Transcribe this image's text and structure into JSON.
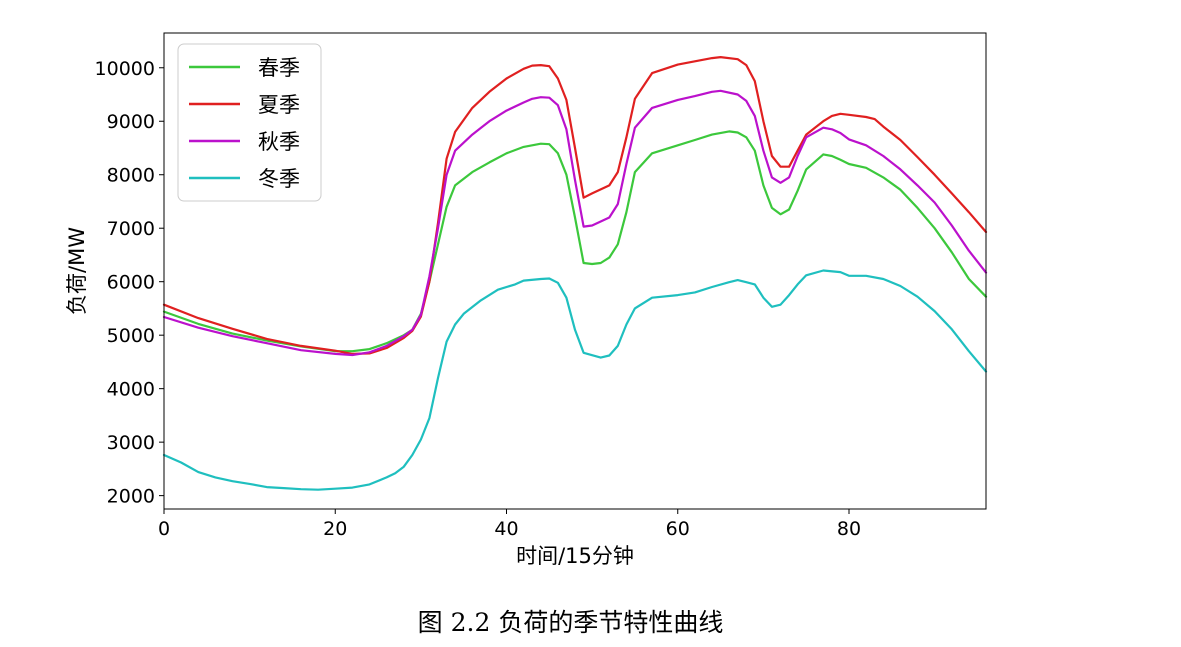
{
  "caption": "图 2.2  负荷的季节特性曲线",
  "chart_data": {
    "type": "line",
    "xlabel": "时间/15分钟",
    "ylabel": "负荷/MW",
    "xlim": [
      0,
      96
    ],
    "ylim": [
      1750,
      10650
    ],
    "xticks": [
      0,
      20,
      40,
      60,
      80
    ],
    "yticks": [
      2000,
      3000,
      4000,
      5000,
      6000,
      7000,
      8000,
      9000,
      10000
    ],
    "grid": false,
    "legend_position": "top-left",
    "series": [
      {
        "name": "春季",
        "color": "#3cc83c",
        "points": [
          [
            0,
            5440
          ],
          [
            4,
            5210
          ],
          [
            8,
            5030
          ],
          [
            12,
            4900
          ],
          [
            16,
            4790
          ],
          [
            20,
            4700
          ],
          [
            22,
            4700
          ],
          [
            24,
            4740
          ],
          [
            26,
            4850
          ],
          [
            28,
            5000
          ],
          [
            29,
            5100
          ],
          [
            30,
            5400
          ],
          [
            31,
            6000
          ],
          [
            32,
            6700
          ],
          [
            33,
            7400
          ],
          [
            34,
            7800
          ],
          [
            36,
            8050
          ],
          [
            38,
            8230
          ],
          [
            40,
            8400
          ],
          [
            42,
            8520
          ],
          [
            44,
            8580
          ],
          [
            45,
            8570
          ],
          [
            46,
            8400
          ],
          [
            47,
            8000
          ],
          [
            48,
            7200
          ],
          [
            49,
            6350
          ],
          [
            50,
            6330
          ],
          [
            51,
            6350
          ],
          [
            52,
            6450
          ],
          [
            53,
            6700
          ],
          [
            54,
            7300
          ],
          [
            55,
            8050
          ],
          [
            57,
            8400
          ],
          [
            60,
            8550
          ],
          [
            62,
            8650
          ],
          [
            64,
            8750
          ],
          [
            66,
            8810
          ],
          [
            67,
            8790
          ],
          [
            68,
            8700
          ],
          [
            69,
            8450
          ],
          [
            70,
            7800
          ],
          [
            71,
            7380
          ],
          [
            72,
            7260
          ],
          [
            73,
            7350
          ],
          [
            74,
            7700
          ],
          [
            75,
            8100
          ],
          [
            77,
            8380
          ],
          [
            78,
            8350
          ],
          [
            79,
            8280
          ],
          [
            80,
            8200
          ],
          [
            82,
            8130
          ],
          [
            84,
            7950
          ],
          [
            86,
            7720
          ],
          [
            88,
            7380
          ],
          [
            90,
            7000
          ],
          [
            92,
            6550
          ],
          [
            94,
            6050
          ],
          [
            96,
            5720
          ]
        ]
      },
      {
        "name": "夏季",
        "color": "#e02020",
        "points": [
          [
            0,
            5570
          ],
          [
            4,
            5320
          ],
          [
            8,
            5120
          ],
          [
            12,
            4930
          ],
          [
            16,
            4800
          ],
          [
            20,
            4710
          ],
          [
            22,
            4650
          ],
          [
            24,
            4660
          ],
          [
            26,
            4760
          ],
          [
            28,
            4950
          ],
          [
            29,
            5080
          ],
          [
            30,
            5350
          ],
          [
            31,
            6000
          ],
          [
            32,
            7100
          ],
          [
            33,
            8300
          ],
          [
            34,
            8800
          ],
          [
            36,
            9250
          ],
          [
            38,
            9550
          ],
          [
            40,
            9800
          ],
          [
            42,
            9980
          ],
          [
            43,
            10040
          ],
          [
            44,
            10050
          ],
          [
            45,
            10030
          ],
          [
            46,
            9800
          ],
          [
            47,
            9400
          ],
          [
            48,
            8500
          ],
          [
            49,
            7570
          ],
          [
            50,
            7650
          ],
          [
            52,
            7800
          ],
          [
            53,
            8050
          ],
          [
            54,
            8700
          ],
          [
            55,
            9420
          ],
          [
            57,
            9900
          ],
          [
            60,
            10060
          ],
          [
            62,
            10120
          ],
          [
            64,
            10180
          ],
          [
            65,
            10200
          ],
          [
            67,
            10160
          ],
          [
            68,
            10050
          ],
          [
            69,
            9750
          ],
          [
            70,
            9000
          ],
          [
            71,
            8350
          ],
          [
            72,
            8150
          ],
          [
            73,
            8150
          ],
          [
            74,
            8450
          ],
          [
            75,
            8750
          ],
          [
            77,
            9000
          ],
          [
            78,
            9100
          ],
          [
            79,
            9140
          ],
          [
            80,
            9120
          ],
          [
            82,
            9080
          ],
          [
            83,
            9040
          ],
          [
            84,
            8900
          ],
          [
            86,
            8650
          ],
          [
            88,
            8330
          ],
          [
            90,
            8000
          ],
          [
            92,
            7650
          ],
          [
            94,
            7300
          ],
          [
            96,
            6930
          ]
        ]
      },
      {
        "name": "秋季",
        "color": "#bb11cc",
        "points": [
          [
            0,
            5340
          ],
          [
            4,
            5140
          ],
          [
            8,
            4980
          ],
          [
            12,
            4850
          ],
          [
            16,
            4720
          ],
          [
            20,
            4650
          ],
          [
            22,
            4630
          ],
          [
            24,
            4680
          ],
          [
            26,
            4800
          ],
          [
            28,
            4980
          ],
          [
            29,
            5100
          ],
          [
            30,
            5380
          ],
          [
            31,
            6100
          ],
          [
            32,
            7000
          ],
          [
            33,
            8000
          ],
          [
            34,
            8450
          ],
          [
            36,
            8750
          ],
          [
            38,
            9000
          ],
          [
            40,
            9200
          ],
          [
            42,
            9350
          ],
          [
            43,
            9420
          ],
          [
            44,
            9450
          ],
          [
            45,
            9440
          ],
          [
            46,
            9300
          ],
          [
            47,
            8850
          ],
          [
            48,
            7900
          ],
          [
            49,
            7030
          ],
          [
            50,
            7050
          ],
          [
            52,
            7200
          ],
          [
            53,
            7450
          ],
          [
            54,
            8200
          ],
          [
            55,
            8880
          ],
          [
            57,
            9250
          ],
          [
            60,
            9400
          ],
          [
            62,
            9470
          ],
          [
            64,
            9550
          ],
          [
            65,
            9570
          ],
          [
            67,
            9500
          ],
          [
            68,
            9380
          ],
          [
            69,
            9100
          ],
          [
            70,
            8450
          ],
          [
            71,
            7950
          ],
          [
            72,
            7850
          ],
          [
            73,
            7950
          ],
          [
            74,
            8350
          ],
          [
            75,
            8700
          ],
          [
            77,
            8880
          ],
          [
            78,
            8850
          ],
          [
            79,
            8780
          ],
          [
            80,
            8660
          ],
          [
            82,
            8550
          ],
          [
            84,
            8350
          ],
          [
            86,
            8100
          ],
          [
            88,
            7800
          ],
          [
            90,
            7480
          ],
          [
            92,
            7050
          ],
          [
            94,
            6580
          ],
          [
            96,
            6170
          ]
        ]
      },
      {
        "name": "冬季",
        "color": "#1fbfbf",
        "points": [
          [
            0,
            2760
          ],
          [
            2,
            2620
          ],
          [
            4,
            2440
          ],
          [
            6,
            2340
          ],
          [
            8,
            2270
          ],
          [
            10,
            2220
          ],
          [
            12,
            2160
          ],
          [
            14,
            2140
          ],
          [
            16,
            2120
          ],
          [
            18,
            2110
          ],
          [
            20,
            2130
          ],
          [
            22,
            2150
          ],
          [
            24,
            2210
          ],
          [
            26,
            2340
          ],
          [
            27,
            2420
          ],
          [
            28,
            2540
          ],
          [
            29,
            2760
          ],
          [
            30,
            3050
          ],
          [
            31,
            3450
          ],
          [
            32,
            4200
          ],
          [
            33,
            4880
          ],
          [
            34,
            5200
          ],
          [
            35,
            5400
          ],
          [
            37,
            5650
          ],
          [
            39,
            5850
          ],
          [
            41,
            5950
          ],
          [
            42,
            6020
          ],
          [
            44,
            6050
          ],
          [
            45,
            6060
          ],
          [
            46,
            5980
          ],
          [
            47,
            5700
          ],
          [
            48,
            5100
          ],
          [
            49,
            4670
          ],
          [
            51,
            4580
          ],
          [
            52,
            4620
          ],
          [
            53,
            4800
          ],
          [
            54,
            5200
          ],
          [
            55,
            5500
          ],
          [
            57,
            5700
          ],
          [
            60,
            5750
          ],
          [
            62,
            5800
          ],
          [
            64,
            5900
          ],
          [
            66,
            5990
          ],
          [
            67,
            6030
          ],
          [
            68,
            5990
          ],
          [
            69,
            5950
          ],
          [
            70,
            5700
          ],
          [
            71,
            5530
          ],
          [
            72,
            5570
          ],
          [
            73,
            5750
          ],
          [
            74,
            5950
          ],
          [
            75,
            6120
          ],
          [
            77,
            6210
          ],
          [
            79,
            6180
          ],
          [
            80,
            6110
          ],
          [
            82,
            6110
          ],
          [
            84,
            6050
          ],
          [
            86,
            5920
          ],
          [
            88,
            5720
          ],
          [
            90,
            5450
          ],
          [
            92,
            5110
          ],
          [
            94,
            4700
          ],
          [
            96,
            4320
          ]
        ]
      }
    ]
  }
}
